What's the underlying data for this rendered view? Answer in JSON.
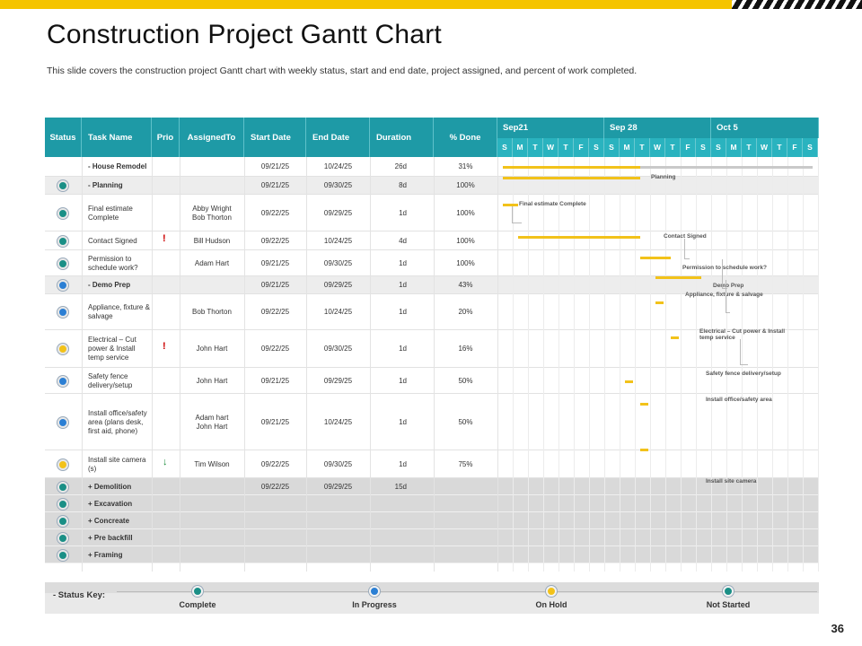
{
  "page": {
    "title": "Construction Project Gantt Chart",
    "subtitle": "This slide covers the construction project Gantt chart with weekly status, start and end date, project assigned, and percent of work completed.",
    "page_number": "36"
  },
  "colors": {
    "header_teal": "#1e9aa6",
    "day_teal": "#2ab3bf",
    "bar_yellow": "#f2c21a",
    "complete": "#1a8f86",
    "in_progress": "#2b7fd4",
    "on_hold": "#f2c21a",
    "not_started": "#1a8f86",
    "prio_high": "#cc0000",
    "prio_low": "#1a8a3a"
  },
  "chart_data": {
    "type": "table",
    "columns": [
      "Status",
      "Task Name",
      "Prio",
      "AssignedTo",
      "Start Date",
      "End Date",
      "Duration",
      "% Done"
    ],
    "weeks": [
      "Sep21",
      "Sep 28",
      "Oct 5"
    ],
    "days": [
      "S",
      "M",
      "T",
      "W",
      "T",
      "F",
      "S",
      "S",
      "M",
      "T",
      "W",
      "T",
      "F",
      "S",
      "S",
      "M",
      "T",
      "W",
      "T",
      "F",
      "S"
    ],
    "rows": [
      {
        "status": "",
        "task": "- House Remodel",
        "prio": "",
        "assigned": "",
        "start": "09/21/25",
        "end": "10/24/25",
        "duration": "26d",
        "done": "31%"
      },
      {
        "status": "complete",
        "task": "- Planning",
        "prio": "",
        "assigned": "",
        "start": "09/21/25",
        "end": "09/30/25",
        "duration": "8d",
        "done": "100%"
      },
      {
        "status": "complete",
        "task": "Final estimate Complete",
        "prio": "",
        "assigned": "Abby Wright\nBob Thorton",
        "start": "09/22/25",
        "end": "09/29/25",
        "duration": "1d",
        "done": "100%"
      },
      {
        "status": "complete",
        "task": "Contact Signed",
        "prio": "!",
        "assigned": "Bill Hudson",
        "start": "09/22/25",
        "end": "10/24/25",
        "duration": "4d",
        "done": "100%"
      },
      {
        "status": "complete",
        "task": "Permission to schedule work?",
        "prio": "",
        "assigned": "Adam Hart",
        "start": "09/21/25",
        "end": "09/30/25",
        "duration": "1d",
        "done": "100%"
      },
      {
        "status": "in_progress",
        "task": "- Demo Prep",
        "prio": "",
        "assigned": "",
        "start": "09/21/25",
        "end": "09/29/25",
        "duration": "1d",
        "done": "43%"
      },
      {
        "status": "in_progress",
        "task": "Appliance, fixture & salvage",
        "prio": "",
        "assigned": "Bob Thorton",
        "start": "09/22/25",
        "end": "10/24/25",
        "duration": "1d",
        "done": "20%"
      },
      {
        "status": "on_hold",
        "task": "Electrical – Cut power & Install temp service",
        "prio": "!",
        "assigned": "John Hart",
        "start": "09/22/25",
        "end": "09/30/25",
        "duration": "1d",
        "done": "16%"
      },
      {
        "status": "in_progress",
        "task": "Safety fence delivery/setup",
        "prio": "",
        "assigned": "John Hart",
        "start": "09/21/25",
        "end": "09/29/25",
        "duration": "1d",
        "done": "50%"
      },
      {
        "status": "in_progress",
        "task": "Install office/safety area (plans desk, first aid, phone)",
        "prio": "",
        "assigned": "Adam hart\nJohn Hart",
        "start": "09/21/25",
        "end": "10/24/25",
        "duration": "1d",
        "done": "50%"
      },
      {
        "status": "on_hold",
        "task": "Install site camera (s)",
        "prio": "↓",
        "assigned": "Tim Wilson",
        "start": "09/22/25",
        "end": "09/30/25",
        "duration": "1d",
        "done": "75%"
      },
      {
        "status": "not_started",
        "task": "+ Demolition",
        "prio": "",
        "assigned": "",
        "start": "09/22/25",
        "end": "09/29/25",
        "duration": "15d",
        "done": ""
      },
      {
        "status": "not_started",
        "task": "+ Excavation",
        "prio": "",
        "assigned": "",
        "start": "",
        "end": "",
        "duration": "",
        "done": ""
      },
      {
        "status": "not_started",
        "task": "+ Concreate",
        "prio": "",
        "assigned": "",
        "start": "",
        "end": "",
        "duration": "",
        "done": ""
      },
      {
        "status": "not_started",
        "task": "+ Pre backfill",
        "prio": "",
        "assigned": "",
        "start": "",
        "end": "",
        "duration": "",
        "done": ""
      },
      {
        "status": "not_started",
        "task": "+ Framing",
        "prio": "",
        "assigned": "",
        "start": "",
        "end": "",
        "duration": "",
        "done": ""
      }
    ],
    "gantt_bars": [
      {
        "row": 0,
        "start_day": 0,
        "end_day": 9,
        "progress": 0.31
      },
      {
        "row": 1,
        "start_day": 0,
        "end_day": 9,
        "label": "Planning"
      },
      {
        "row": 2,
        "start_day": 0,
        "end_day": 1,
        "label": "Final estimate Complete"
      },
      {
        "row": 3,
        "start_day": 1,
        "end_day": 9,
        "label": "Contact Signed"
      },
      {
        "row": 4,
        "start_day": 9,
        "end_day": 11,
        "label": "Permission to schedule work?"
      },
      {
        "row": 5,
        "start_day": 10,
        "end_day": 13,
        "label": "Demo Prep"
      },
      {
        "row": 6,
        "start_day": 10,
        "end_day": 10.5,
        "label": "Appliance, fixture & salvage"
      },
      {
        "row": 7,
        "start_day": 11,
        "end_day": 11.5,
        "label": "Electrical – Cut power & Install temp service"
      },
      {
        "row": 8,
        "start_day": 8,
        "end_day": 8.5,
        "label": "Safety fence delivery/setup"
      },
      {
        "row": 9,
        "start_day": 9,
        "end_day": 9.5,
        "label": "Install office/safety area"
      },
      {
        "row": 10,
        "start_day": 9,
        "end_day": 9.5,
        "label": "Install site camera"
      }
    ]
  },
  "status_key": {
    "title": "- Status Key:",
    "items": [
      {
        "label": "Complete",
        "status": "complete"
      },
      {
        "label": "In Progress",
        "status": "in_progress"
      },
      {
        "label": "On Hold",
        "status": "on_hold"
      },
      {
        "label": "Not Started",
        "status": "not_started"
      }
    ]
  }
}
